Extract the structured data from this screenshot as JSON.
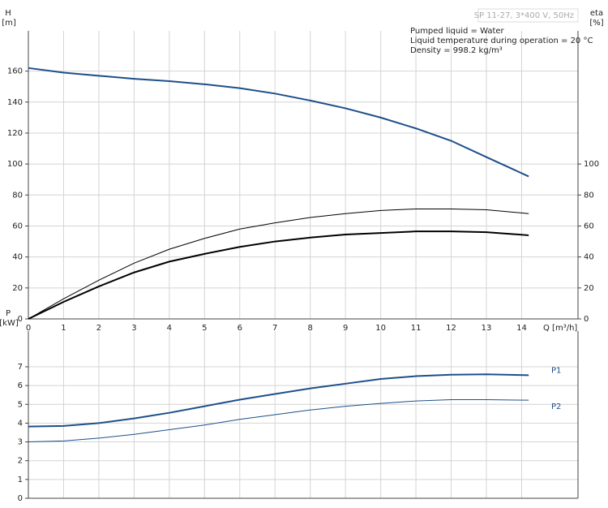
{
  "chart_data": [
    {
      "type": "line",
      "title": "SP 11-27, 3*400 V, 50Hz",
      "annotations": [
        "Pumped liquid = Water",
        "Liquid temperature during operation = 20 °C",
        "Density = 998.2 kg/m³"
      ],
      "ylabel": "H",
      "yunit": "[m]",
      "y2label": "eta",
      "y2unit": "[%]",
      "xlabel": "Q [m³/h]",
      "x": [
        0,
        1,
        2,
        3,
        4,
        5,
        6,
        7,
        8,
        9,
        10,
        11,
        12,
        13,
        14.2
      ],
      "xlim": [
        0,
        15.6
      ],
      "xticks": [
        0,
        1,
        2,
        3,
        4,
        5,
        6,
        7,
        8,
        9,
        10,
        11,
        12,
        13,
        14
      ],
      "ylim": [
        0,
        186
      ],
      "yticks": [
        0,
        20,
        40,
        60,
        80,
        100,
        120,
        140,
        160
      ],
      "y2lim": [
        0,
        186
      ],
      "y2ticks": [
        0,
        20,
        40,
        60,
        80,
        100
      ],
      "grid": true,
      "series": [
        {
          "color": "#1d4f8a",
          "values": [
            162,
            159,
            157,
            155,
            153.5,
            151.5,
            149,
            145.5,
            141,
            136,
            130,
            123,
            115,
            104.5,
            92
          ]
        },
        {
          "color": "#000000",
          "axis": "y2",
          "values": [
            0,
            13,
            25,
            36,
            45,
            52,
            58,
            62,
            65.5,
            68,
            70,
            71,
            71,
            70.5,
            68
          ]
        },
        {
          "color": "#000000",
          "axis": "y2",
          "values": [
            0,
            11,
            21,
            30,
            37,
            42,
            46.5,
            50,
            52.5,
            54.5,
            55.5,
            56.5,
            56.5,
            56,
            54
          ]
        }
      ]
    },
    {
      "type": "line",
      "ylabel": "P",
      "yunit": "[kW]",
      "x": [
        0,
        1,
        2,
        3,
        4,
        5,
        6,
        7,
        8,
        9,
        10,
        11,
        12,
        13,
        14.2
      ],
      "xlim": [
        0,
        15.6
      ],
      "ylim": [
        0,
        8.9
      ],
      "yticks": [
        0,
        1,
        2,
        3,
        4,
        5,
        6,
        7
      ],
      "grid": true,
      "series": [
        {
          "name": "P1",
          "color": "#1d4f8a",
          "values": [
            3.82,
            3.85,
            4.0,
            4.25,
            4.55,
            4.9,
            5.25,
            5.55,
            5.85,
            6.1,
            6.35,
            6.5,
            6.58,
            6.6,
            6.55
          ]
        },
        {
          "name": "P2",
          "color": "#1d4f8a",
          "values": [
            3.0,
            3.05,
            3.2,
            3.4,
            3.65,
            3.9,
            4.2,
            4.45,
            4.7,
            4.9,
            5.05,
            5.18,
            5.25,
            5.25,
            5.22
          ]
        }
      ]
    }
  ]
}
